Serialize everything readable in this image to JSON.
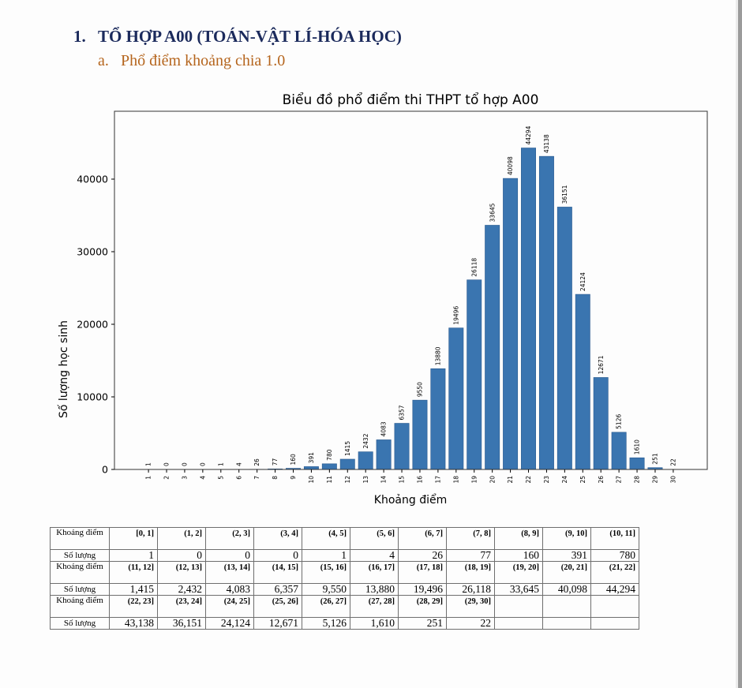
{
  "document": {
    "heading": {
      "number": "1.",
      "text": "TỔ HỢP A00 (TOÁN-VẬT LÍ-HÓA HỌC)"
    },
    "subheading": {
      "number": "a.",
      "text": "Phổ điểm khoảng chia 1.0"
    }
  },
  "chart_data": {
    "type": "bar",
    "title": "Biểu đồ phổ điểm thi THPT tổ hợp A00",
    "xlabel": "Khoảng điểm",
    "ylabel": "Số lượng học sinh",
    "categories": [
      "1",
      "2",
      "3",
      "4",
      "5",
      "6",
      "7",
      "8",
      "9",
      "10",
      "11",
      "12",
      "13",
      "14",
      "15",
      "16",
      "17",
      "18",
      "19",
      "20",
      "21",
      "22",
      "23",
      "24",
      "25",
      "26",
      "27",
      "28",
      "29",
      "30"
    ],
    "values": [
      1,
      0,
      0,
      0,
      1,
      4,
      26,
      77,
      160,
      391,
      780,
      1415,
      2432,
      4083,
      6357,
      9550,
      13880,
      19496,
      26118,
      33645,
      40098,
      44294,
      43138,
      36151,
      24124,
      12671,
      5126,
      1610,
      251,
      22
    ],
    "yticks": [
      0,
      10000,
      20000,
      30000,
      40000
    ],
    "ytick_labels": [
      "0",
      "10000",
      "20000",
      "30000",
      "40000"
    ],
    "xlim": [
      -0.88,
      31.88
    ],
    "ylim": [
      0,
      49350
    ],
    "grid": false,
    "bar_color": "#3a75b0",
    "bar_edge_color": "#2a5a8f"
  },
  "table": {
    "range_header": "Khoảng điểm",
    "count_header": "Số lượng",
    "rows": [
      {
        "ranges": [
          "[0, 1]",
          "(1, 2]",
          "(2, 3]",
          "(3, 4]",
          "(4, 5]",
          "(5, 6]",
          "(6, 7]",
          "(7, 8]",
          "(8, 9]",
          "(9, 10]",
          "(10, 11]"
        ],
        "counts": [
          "1",
          "0",
          "0",
          "0",
          "1",
          "4",
          "26",
          "77",
          "160",
          "391",
          "780"
        ]
      },
      {
        "ranges": [
          "(11, 12]",
          "(12, 13]",
          "(13, 14]",
          "(14, 15]",
          "(15, 16]",
          "(16, 17]",
          "(17, 18]",
          "(18, 19]",
          "(19, 20]",
          "(20, 21]",
          "(21, 22]"
        ],
        "counts": [
          "1,415",
          "2,432",
          "4,083",
          "6,357",
          "9,550",
          "13,880",
          "19,496",
          "26,118",
          "33,645",
          "40,098",
          "44,294"
        ]
      },
      {
        "ranges": [
          "(22, 23]",
          "(23, 24]",
          "(24, 25]",
          "(25, 26]",
          "(26, 27]",
          "(27, 28]",
          "(28, 29]",
          "(29, 30]",
          "",
          "",
          ""
        ],
        "counts": [
          "43,138",
          "36,151",
          "24,124",
          "12,671",
          "5,126",
          "1,610",
          "251",
          "22",
          "",
          "",
          ""
        ]
      }
    ]
  }
}
